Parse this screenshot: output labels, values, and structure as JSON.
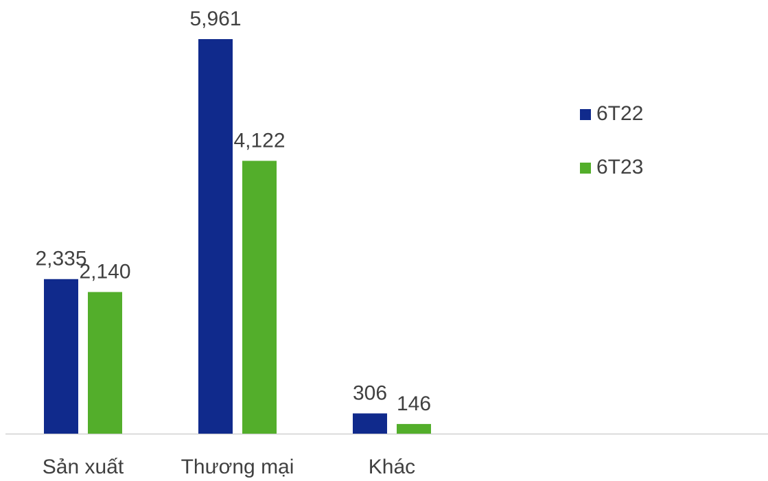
{
  "chart_data": {
    "type": "bar",
    "categories": [
      "Sản xuất",
      "Thương mại",
      "Khác"
    ],
    "series": [
      {
        "name": "6T22",
        "color": "#102a8c",
        "values": [
          2335,
          5961,
          306
        ],
        "value_labels": [
          "2,335",
          "5,961",
          "306"
        ]
      },
      {
        "name": "6T23",
        "color": "#53ae2b",
        "values": [
          2140,
          4122,
          146
        ],
        "value_labels": [
          "2,140",
          "4,122",
          "146"
        ]
      }
    ],
    "legend": "right"
  }
}
